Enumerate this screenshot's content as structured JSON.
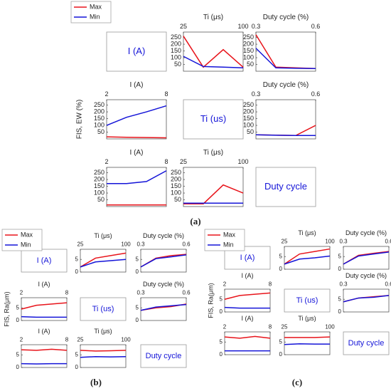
{
  "panels": [
    {
      "label": "(a)",
      "ylabel": "FIS, EW (%)",
      "boxes": [
        "I (A)",
        "Ti (us)",
        "Duty cycle"
      ]
    },
    {
      "label": "(b)",
      "ylabel": "FIS, Ra(μm)",
      "boxes": [
        "I (A)",
        "Ti (us)",
        "Duty cycle"
      ]
    },
    {
      "label": "(c)",
      "ylabel": "FIS, Ra(μm)",
      "boxes": [
        "I (A)",
        "Ti (us)",
        "Duty cycle"
      ]
    }
  ],
  "chart_data": [
    {
      "type": "line",
      "xlabel": "Ti (μs)",
      "x": [
        25,
        50,
        75,
        100
      ],
      "xlim": [
        25,
        100
      ],
      "xticks": [
        25,
        100
      ],
      "ylim": [
        0,
        290
      ],
      "yticks": [
        50,
        100,
        150,
        200,
        250
      ],
      "series": [
        {
          "name": "Max",
          "color": "#e8141b",
          "values": [
            260,
            30,
            160,
            30
          ]
        },
        {
          "name": "Min",
          "color": "#1414d8",
          "values": [
            110,
            35,
            30,
            25
          ]
        }
      ]
    },
    {
      "type": "line",
      "xlabel": "Duty cycle (%)",
      "x": [
        0.3,
        0.4,
        0.5,
        0.6
      ],
      "xlim": [
        0.3,
        0.6
      ],
      "xticks": [
        0.3,
        0.6
      ],
      "ylim": [
        0,
        290
      ],
      "yticks": [
        50,
        100,
        150,
        200,
        250
      ],
      "series": [
        {
          "name": "Max",
          "color": "#e8141b",
          "values": [
            270,
            30,
            25,
            20
          ]
        },
        {
          "name": "Min",
          "color": "#1414d8",
          "values": [
            170,
            25,
            22,
            20
          ]
        }
      ]
    },
    {
      "type": "line",
      "xlabel": "I (A)",
      "x": [
        2,
        4,
        6,
        8
      ],
      "xlim": [
        2,
        8
      ],
      "xticks": [
        2,
        8
      ],
      "ylim": [
        0,
        290
      ],
      "yticks": [
        50,
        100,
        150,
        200,
        250
      ],
      "series": [
        {
          "name": "Max",
          "color": "#e8141b",
          "values": [
            15,
            12,
            10,
            8
          ]
        },
        {
          "name": "Min",
          "color": "#1414d8",
          "values": [
            100,
            160,
            200,
            245
          ]
        }
      ]
    },
    {
      "type": "line",
      "xlabel": "Duty cycle (%)",
      "x": [
        0.3,
        0.4,
        0.5,
        0.6
      ],
      "xlim": [
        0.3,
        0.6
      ],
      "xticks": [
        0.3,
        0.6
      ],
      "ylim": [
        0,
        290
      ],
      "yticks": [
        50,
        100,
        150,
        200,
        250
      ],
      "series": [
        {
          "name": "Max",
          "color": "#e8141b",
          "values": [
            30,
            28,
            25,
            100
          ]
        },
        {
          "name": "Min",
          "color": "#1414d8",
          "values": [
            30,
            27,
            25,
            25
          ]
        }
      ]
    },
    {
      "type": "line",
      "xlabel": "I (A)",
      "x": [
        2,
        4,
        6,
        8
      ],
      "xlim": [
        2,
        8
      ],
      "xticks": [
        2,
        8
      ],
      "ylim": [
        0,
        290
      ],
      "yticks": [
        50,
        100,
        150,
        200,
        250
      ],
      "series": [
        {
          "name": "Max",
          "color": "#e8141b",
          "values": [
            12,
            12,
            12,
            12
          ]
        },
        {
          "name": "Min",
          "color": "#1414d8",
          "values": [
            170,
            170,
            185,
            265
          ]
        }
      ]
    },
    {
      "type": "line",
      "xlabel": "Ti (μs)",
      "x": [
        25,
        50,
        75,
        100
      ],
      "xlim": [
        25,
        100
      ],
      "xticks": [
        25,
        100
      ],
      "ylim": [
        0,
        290
      ],
      "yticks": [
        50,
        100,
        150,
        200,
        250
      ],
      "series": [
        {
          "name": "Max",
          "color": "#e8141b",
          "values": [
            20,
            20,
            160,
            100
          ]
        },
        {
          "name": "Min",
          "color": "#1414d8",
          "values": [
            25,
            25,
            25,
            25
          ]
        }
      ]
    },
    {
      "type": "line",
      "xlabel": "Ti (μs)",
      "x": [
        25,
        50,
        75,
        100
      ],
      "xlim": [
        25,
        100
      ],
      "xticks": [
        25,
        100
      ],
      "ylim": [
        0,
        9
      ],
      "yticks": [
        0,
        5
      ],
      "series": [
        {
          "name": "Max",
          "color": "#e8141b",
          "values": [
            2,
            5.5,
            6.5,
            7.5
          ]
        },
        {
          "name": "Min",
          "color": "#1414d8",
          "values": [
            2,
            4,
            4.5,
            5
          ]
        }
      ]
    },
    {
      "type": "line",
      "xlabel": "Duty cycle (%)",
      "x": [
        0.3,
        0.4,
        0.5,
        0.6
      ],
      "xlim": [
        0.3,
        0.6
      ],
      "xticks": [
        0.3,
        0.6
      ],
      "ylim": [
        0,
        9
      ],
      "yticks": [
        0,
        5
      ],
      "series": [
        {
          "name": "Max",
          "color": "#e8141b",
          "values": [
            2,
            5.5,
            6.5,
            7
          ]
        },
        {
          "name": "Min",
          "color": "#1414d8",
          "values": [
            2,
            5.3,
            6,
            6.8
          ]
        }
      ]
    },
    {
      "type": "line",
      "xlabel": "I (A)",
      "x": [
        2,
        4,
        6,
        8
      ],
      "xlim": [
        2,
        8
      ],
      "xticks": [
        2,
        8
      ],
      "ylim": [
        0,
        9
      ],
      "yticks": [
        0,
        5
      ],
      "series": [
        {
          "name": "Max",
          "color": "#e8141b",
          "values": [
            4.5,
            6,
            6.5,
            7
          ]
        },
        {
          "name": "Min",
          "color": "#1414d8",
          "values": [
            1.5,
            1.3,
            1.3,
            1.3
          ]
        }
      ]
    },
    {
      "type": "line",
      "xlabel": "Duty cycle (%)",
      "x": [
        0.3,
        0.4,
        0.5,
        0.6
      ],
      "xlim": [
        0.3,
        0.6
      ],
      "xticks": [
        0.3,
        0.6
      ],
      "ylim": [
        0,
        9
      ],
      "yticks": [
        0,
        5
      ],
      "series": [
        {
          "name": "Max",
          "color": "#e8141b",
          "values": [
            4,
            5,
            5.5,
            6.5
          ]
        },
        {
          "name": "Min",
          "color": "#1414d8",
          "values": [
            4,
            5.3,
            5.8,
            6.3
          ]
        }
      ]
    },
    {
      "type": "line",
      "xlabel": "I (A)",
      "x": [
        2,
        4,
        6,
        8
      ],
      "xlim": [
        2,
        8
      ],
      "xticks": [
        2,
        8
      ],
      "ylim": [
        0,
        9
      ],
      "yticks": [
        0,
        5
      ],
      "series": [
        {
          "name": "Max",
          "color": "#e8141b",
          "values": [
            7,
            6.8,
            7.2,
            6.8
          ]
        },
        {
          "name": "Min",
          "color": "#1414d8",
          "values": [
            1.5,
            1.4,
            1.5,
            1.5
          ]
        }
      ]
    },
    {
      "type": "line",
      "xlabel": "Ti (μs)",
      "x": [
        25,
        50,
        75,
        100
      ],
      "xlim": [
        25,
        100
      ],
      "xticks": [
        25,
        100
      ],
      "ylim": [
        0,
        9
      ],
      "yticks": [
        0,
        5
      ],
      "series": [
        {
          "name": "Max",
          "color": "#e8141b",
          "values": [
            6.8,
            6.5,
            6.6,
            6.8
          ]
        },
        {
          "name": "Min",
          "color": "#1414d8",
          "values": [
            4,
            4.3,
            4.2,
            4.3
          ]
        }
      ]
    },
    {
      "type": "line",
      "xlabel": "Ti (μs)",
      "x": [
        25,
        50,
        75,
        100
      ],
      "xlim": [
        25,
        100
      ],
      "xticks": [
        25,
        100
      ],
      "ylim": [
        0,
        9
      ],
      "yticks": [
        0,
        5
      ],
      "series": [
        {
          "name": "Max",
          "color": "#e8141b",
          "values": [
            2,
            6,
            7,
            8
          ]
        },
        {
          "name": "Min",
          "color": "#1414d8",
          "values": [
            2,
            4,
            4.5,
            5.2
          ]
        }
      ]
    },
    {
      "type": "line",
      "xlabel": "Duty cycle (%)",
      "x": [
        0.3,
        0.4,
        0.5,
        0.6
      ],
      "xlim": [
        0.3,
        0.6
      ],
      "xticks": [
        0.3,
        0.6
      ],
      "ylim": [
        0,
        9
      ],
      "yticks": [
        0,
        5
      ],
      "series": [
        {
          "name": "Max",
          "color": "#e8141b",
          "values": [
            2,
            5.5,
            6.3,
            7
          ]
        },
        {
          "name": "Min",
          "color": "#1414d8",
          "values": [
            2,
            5.2,
            6,
            6.8
          ]
        }
      ]
    },
    {
      "type": "line",
      "xlabel": "I (A)",
      "x": [
        2,
        4,
        6,
        8
      ],
      "xlim": [
        2,
        8
      ],
      "xticks": [
        2,
        8
      ],
      "ylim": [
        0,
        9
      ],
      "yticks": [
        0,
        5
      ],
      "series": [
        {
          "name": "Max",
          "color": "#e8141b",
          "values": [
            5,
            6.5,
            7,
            7.5
          ]
        },
        {
          "name": "Min",
          "color": "#1414d8",
          "values": [
            1.8,
            1.5,
            1.5,
            1.5
          ]
        }
      ]
    },
    {
      "type": "line",
      "xlabel": "Duty cycle (%)",
      "x": [
        0.3,
        0.4,
        0.5,
        0.6
      ],
      "xlim": [
        0.3,
        0.6
      ],
      "xticks": [
        0.3,
        0.6
      ],
      "ylim": [
        0,
        9
      ],
      "yticks": [
        0,
        5
      ],
      "series": [
        {
          "name": "Max",
          "color": "#e8141b",
          "values": [
            4,
            5.5,
            6,
            6.5
          ]
        },
        {
          "name": "Min",
          "color": "#1414d8",
          "values": [
            4,
            5.5,
            5.8,
            6.5
          ]
        }
      ]
    },
    {
      "type": "line",
      "xlabel": "I (A)",
      "x": [
        2,
        4,
        6,
        8
      ],
      "xlim": [
        2,
        8
      ],
      "xticks": [
        2,
        8
      ],
      "ylim": [
        0,
        9
      ],
      "yticks": [
        0,
        5
      ],
      "series": [
        {
          "name": "Max",
          "color": "#e8141b",
          "values": [
            7,
            6.5,
            7.2,
            6.5
          ]
        },
        {
          "name": "Min",
          "color": "#1414d8",
          "values": [
            1.5,
            1.5,
            1.5,
            1.5
          ]
        }
      ]
    },
    {
      "type": "line",
      "xlabel": "Ti (μs)",
      "x": [
        25,
        50,
        75,
        100
      ],
      "xlim": [
        25,
        100
      ],
      "xticks": [
        25,
        100
      ],
      "ylim": [
        0,
        9
      ],
      "yticks": [
        0,
        5
      ],
      "series": [
        {
          "name": "Max",
          "color": "#e8141b",
          "values": [
            6.8,
            6.8,
            6.8,
            7
          ]
        },
        {
          "name": "Min",
          "color": "#1414d8",
          "values": [
            4,
            4.3,
            4.2,
            4.2
          ]
        }
      ]
    }
  ]
}
